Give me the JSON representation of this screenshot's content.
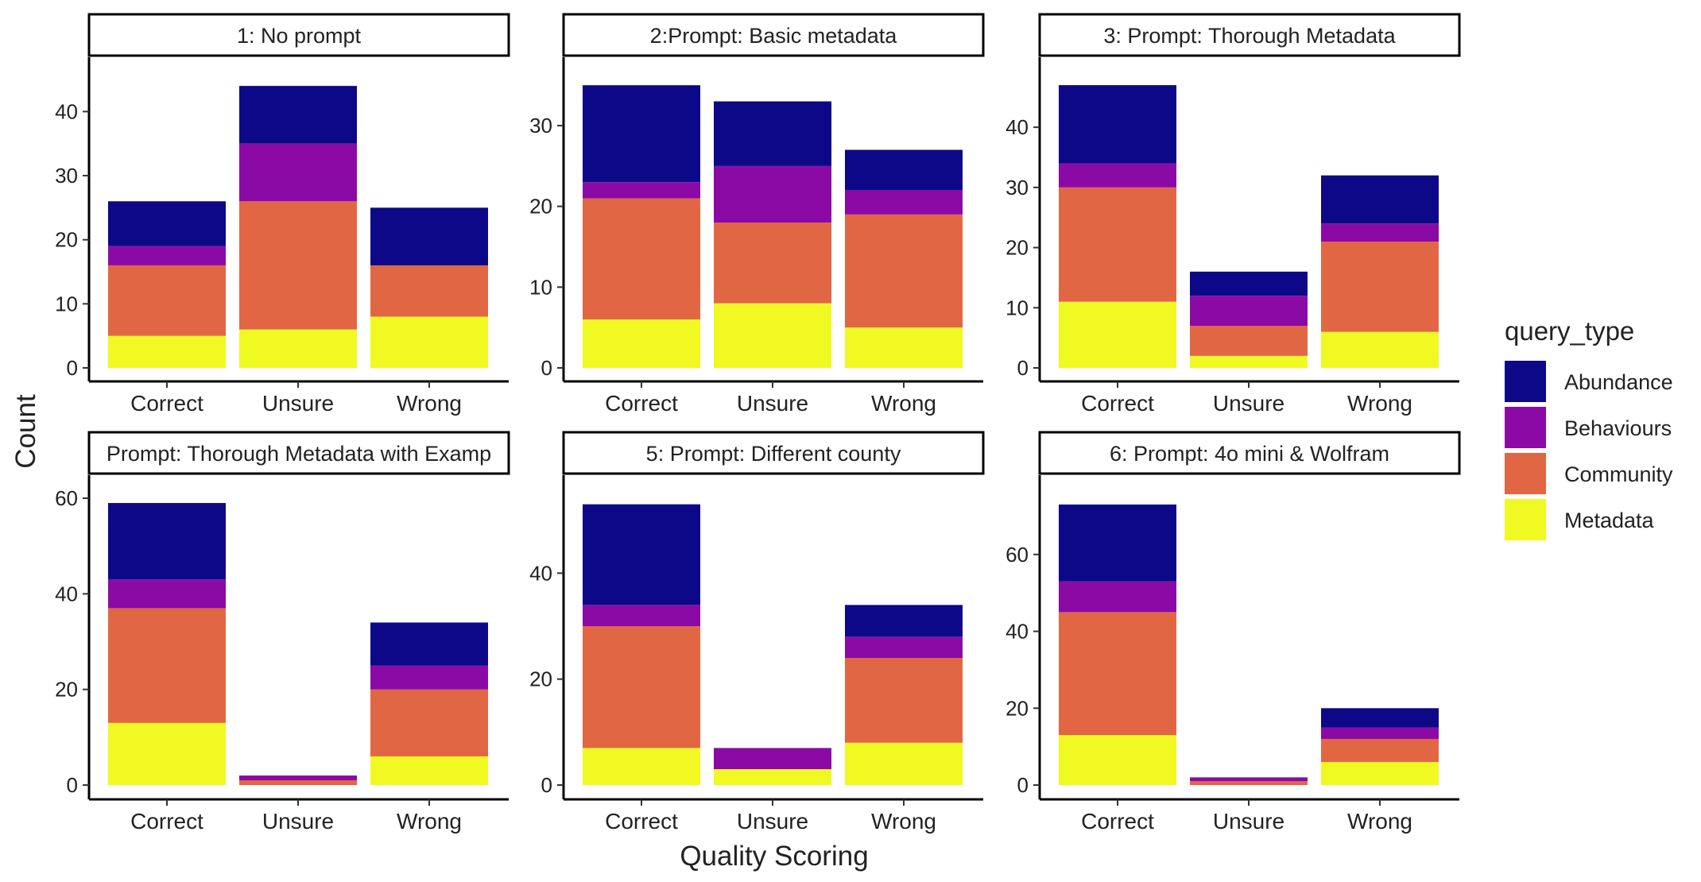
{
  "figure": {
    "xlabel": "Quality Scoring",
    "ylabel": "Count"
  },
  "legend": {
    "title": "query_type",
    "placement": "right",
    "entries": [
      {
        "name": "Abundance",
        "color": "#0d0887"
      },
      {
        "name": "Behaviours",
        "color": "#8b0aa5"
      },
      {
        "name": "Community",
        "color": "#e16744"
      },
      {
        "name": "Metadata",
        "color": "#f0f921"
      }
    ]
  },
  "chart_data": [
    {
      "type": "bar",
      "stacked": true,
      "title": "1: No prompt",
      "categories": [
        "Correct",
        "Unsure",
        "Wrong"
      ],
      "yticks": [
        0,
        10,
        20,
        30,
        40
      ],
      "ylim": [
        0,
        46
      ],
      "series": [
        {
          "name": "Metadata",
          "values": [
            5,
            6,
            8
          ]
        },
        {
          "name": "Community",
          "values": [
            11,
            20,
            8
          ]
        },
        {
          "name": "Behaviours",
          "values": [
            3,
            9,
            0
          ]
        },
        {
          "name": "Abundance",
          "values": [
            7,
            9,
            9
          ]
        }
      ]
    },
    {
      "type": "bar",
      "stacked": true,
      "title": "2:Prompt: Basic metadata",
      "categories": [
        "Correct",
        "Unsure",
        "Wrong"
      ],
      "yticks": [
        0,
        10,
        20,
        30
      ],
      "ylim": [
        0,
        36.5
      ],
      "series": [
        {
          "name": "Metadata",
          "values": [
            6,
            8,
            5
          ]
        },
        {
          "name": "Community",
          "values": [
            15,
            10,
            14
          ]
        },
        {
          "name": "Behaviours",
          "values": [
            2,
            7,
            3
          ]
        },
        {
          "name": "Abundance",
          "values": [
            12,
            8,
            5
          ]
        }
      ]
    },
    {
      "type": "bar",
      "stacked": true,
      "title": "3: Prompt: Thorough Metadata",
      "categories": [
        "Correct",
        "Unsure",
        "Wrong"
      ],
      "yticks": [
        0,
        10,
        20,
        30,
        40
      ],
      "ylim": [
        0,
        49
      ],
      "series": [
        {
          "name": "Metadata",
          "values": [
            11,
            2,
            6
          ]
        },
        {
          "name": "Community",
          "values": [
            19,
            5,
            15
          ]
        },
        {
          "name": "Behaviours",
          "values": [
            4,
            5,
            3
          ]
        },
        {
          "name": "Abundance",
          "values": [
            13,
            4,
            8
          ]
        }
      ]
    },
    {
      "type": "bar",
      "stacked": true,
      "title": "Prompt: Thorough Metadata with Examp",
      "categories": [
        "Correct",
        "Unsure",
        "Wrong"
      ],
      "yticks": [
        0,
        20,
        40,
        60
      ],
      "ylim": [
        0,
        61.5
      ],
      "series": [
        {
          "name": "Metadata",
          "values": [
            13,
            0,
            6
          ]
        },
        {
          "name": "Community",
          "values": [
            24,
            1,
            14
          ]
        },
        {
          "name": "Behaviours",
          "values": [
            6,
            1,
            5
          ]
        },
        {
          "name": "Abundance",
          "values": [
            16,
            0,
            9
          ]
        }
      ]
    },
    {
      "type": "bar",
      "stacked": true,
      "title": "5: Prompt: Different county",
      "categories": [
        "Correct",
        "Unsure",
        "Wrong"
      ],
      "yticks": [
        0,
        20,
        40
      ],
      "ylim": [
        0,
        55.5
      ],
      "series": [
        {
          "name": "Metadata",
          "values": [
            7,
            3,
            8
          ]
        },
        {
          "name": "Community",
          "values": [
            23,
            0,
            16
          ]
        },
        {
          "name": "Behaviours",
          "values": [
            4,
            4,
            4
          ]
        },
        {
          "name": "Abundance",
          "values": [
            19,
            0,
            6
          ]
        }
      ]
    },
    {
      "type": "bar",
      "stacked": true,
      "title": "6: Prompt: 4o mini & Wolfram",
      "categories": [
        "Correct",
        "Unsure",
        "Wrong"
      ],
      "yticks": [
        0,
        20,
        40,
        60
      ],
      "ylim": [
        0,
        76.5
      ],
      "series": [
        {
          "name": "Metadata",
          "values": [
            13,
            0,
            6
          ]
        },
        {
          "name": "Community",
          "values": [
            32,
            1,
            6
          ]
        },
        {
          "name": "Behaviours",
          "values": [
            8,
            1,
            3
          ]
        },
        {
          "name": "Abundance",
          "values": [
            20,
            0,
            5
          ]
        }
      ]
    }
  ]
}
